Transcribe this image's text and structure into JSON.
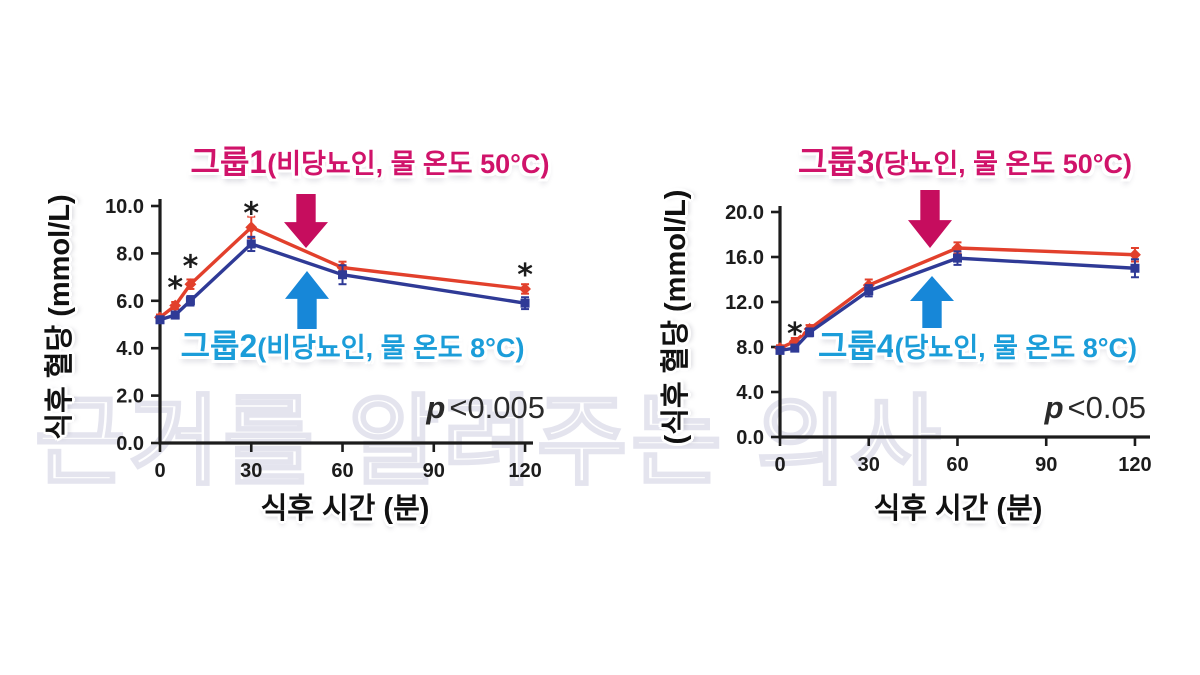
{
  "page": {
    "watermark_text": "근거를 알려주는 의사",
    "colors": {
      "series_red": "#e2402c",
      "series_navy": "#2f3a96",
      "label_magenta": "#d0136a",
      "label_blue": "#1b9dd9",
      "axis_black": "#1c1c1c"
    }
  },
  "chart_data": [
    {
      "type": "line",
      "x": [
        0,
        5,
        10,
        30,
        60,
        120
      ],
      "x_ticks": [
        0,
        30,
        60,
        90,
        120
      ],
      "y_ticks": [
        "0.0",
        "2.0",
        "4.0",
        "6.0",
        "8.0",
        "10.0"
      ],
      "ylim": [
        0,
        10
      ],
      "xlabel": "식후 시간 (분)",
      "ylabel": "식후 혈당 (mmol/L)",
      "p_italic": "p",
      "p_text": "<0.005",
      "legend_position": "annotations-with-arrows",
      "grid": "off",
      "series": [
        {
          "name": "그룹1(비당뇨인, 물 온도 50°C)",
          "label_group": "그룹1",
          "label_detail": "(비당뇨인, 물 온도 50°C)",
          "color": "#e2402c",
          "label_color": "#d0136a",
          "marker": "diamond",
          "values": [
            5.3,
            5.8,
            6.7,
            9.1,
            7.4,
            6.5
          ],
          "err": [
            0.12,
            0.15,
            0.2,
            0.45,
            0.25,
            0.2
          ]
        },
        {
          "name": "그룹2(비당뇨인, 물 온도 8°C)",
          "label_group": "그룹2",
          "label_detail": "(비당뇨인, 물 온도 8°C)",
          "color": "#2f3a96",
          "label_color": "#1b9dd9",
          "marker": "square",
          "values": [
            5.2,
            5.4,
            6.0,
            8.4,
            7.1,
            5.9
          ],
          "err": [
            0.12,
            0.15,
            0.2,
            0.3,
            0.4,
            0.25
          ]
        }
      ],
      "asterisks": [
        {
          "x": 5,
          "y": 6.75
        },
        {
          "x": 10,
          "y": 7.65
        },
        {
          "x": 30,
          "y": 9.9
        },
        {
          "x": 120,
          "y": 7.3
        }
      ]
    },
    {
      "type": "line",
      "x": [
        0,
        5,
        10,
        30,
        60,
        120
      ],
      "x_ticks": [
        0,
        30,
        60,
        90,
        120
      ],
      "y_ticks": [
        "0.0",
        "4.0",
        "8.0",
        "12.0",
        "16.0",
        "20.0"
      ],
      "ylim": [
        0,
        20
      ],
      "xlabel": "식후 시간 (분)",
      "ylabel": "(식후 혈당 (mmol/L)",
      "p_italic": "p",
      "p_text": "<0.05",
      "legend_position": "annotations-with-arrows",
      "grid": "off",
      "series": [
        {
          "name": "그룹3(당뇨인, 물 온도 50°C)",
          "label_group": "그룹3",
          "label_detail": "(당뇨인, 물 온도 50°C)",
          "color": "#e2402c",
          "label_color": "#d0136a",
          "marker": "diamond",
          "values": [
            7.9,
            8.5,
            9.6,
            13.5,
            16.8,
            16.2
          ],
          "err": [
            0.25,
            0.3,
            0.35,
            0.5,
            0.5,
            0.6
          ]
        },
        {
          "name": "그룹4(당뇨인, 물 온도 8°C)",
          "label_group": "그룹4",
          "label_detail": "(당뇨인, 물 온도 8°C)",
          "color": "#2f3a96",
          "label_color": "#1b9dd9",
          "marker": "square",
          "values": [
            7.7,
            7.9,
            9.3,
            13.0,
            15.9,
            15.0
          ],
          "err": [
            0.25,
            0.3,
            0.35,
            0.5,
            0.6,
            0.8
          ]
        }
      ],
      "asterisks": [
        {
          "x": 5,
          "y": 9.6
        }
      ]
    }
  ]
}
